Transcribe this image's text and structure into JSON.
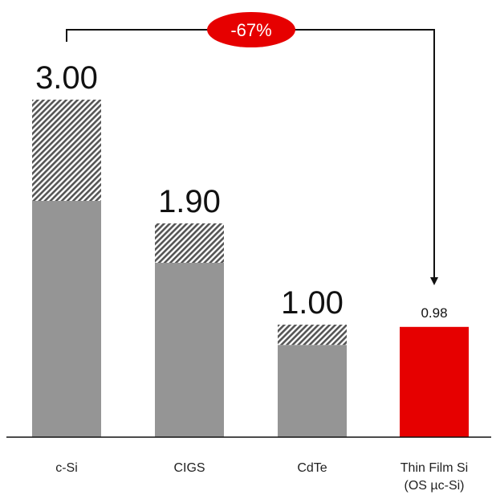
{
  "chart_data": {
    "type": "bar",
    "stacked": true,
    "categories": [
      "c-Si",
      "CIGS",
      "CdTe",
      "Thin Film Si"
    ],
    "category_sublabels": [
      "",
      "",
      "",
      "(OS µc-Si)"
    ],
    "value_labels": [
      "3.00",
      "1.90",
      "1.00",
      "0.98"
    ],
    "totals": [
      3.0,
      1.9,
      1.0,
      0.98
    ],
    "series": [
      {
        "values": [
          2.1,
          1.55,
          0.82,
          0.98
        ]
      },
      {
        "values": [
          0.9,
          0.35,
          0.18,
          0
        ]
      }
    ],
    "ylim": [
      0,
      3.0
    ],
    "grid": false,
    "annotation": {
      "text": "-67%",
      "from": "c-Si",
      "to": "Thin Film Si"
    }
  },
  "colors": {
    "base_bar": "#959595",
    "hatch_fg": "#555555",
    "hatch_bg": "#ffffff",
    "highlight_bar": "#e60000",
    "badge": "#e60000",
    "axis": "#111111",
    "arrow": "#111111"
  }
}
